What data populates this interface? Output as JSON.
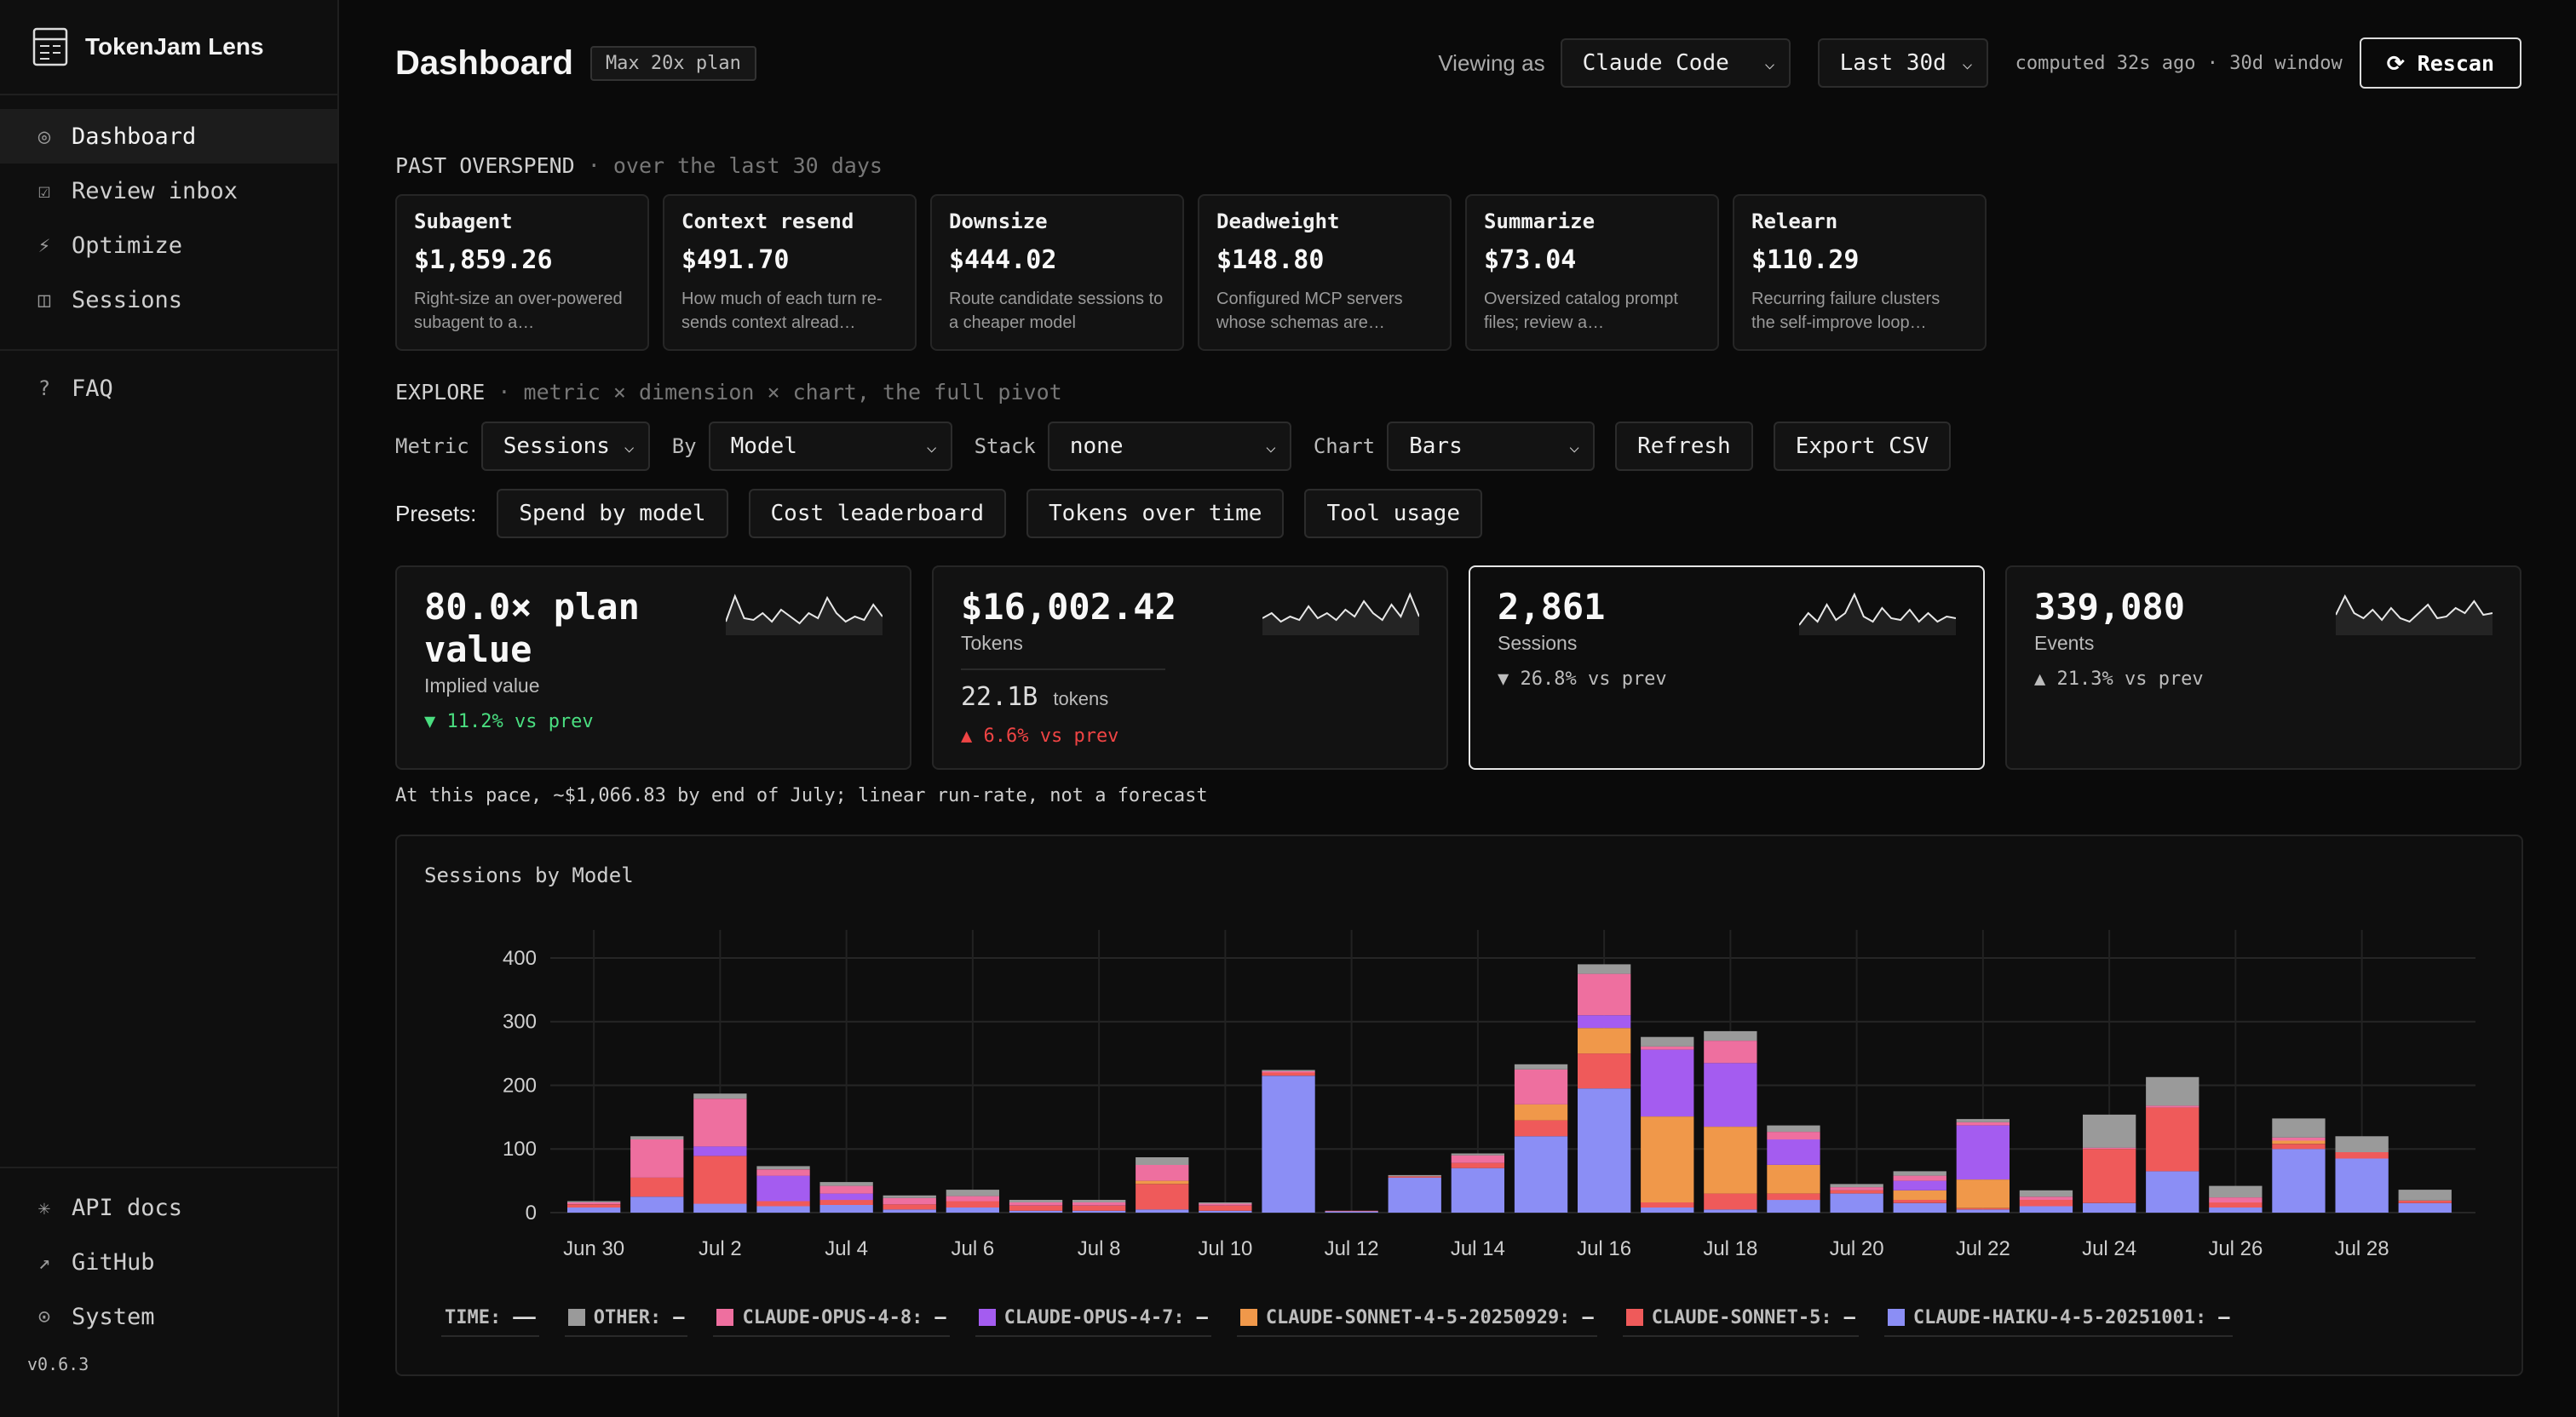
{
  "app": {
    "name": "TokenJam Lens",
    "version": "v0.6.3"
  },
  "sidebar": {
    "items": [
      {
        "icon": "◎",
        "label": "Dashboard",
        "active": true
      },
      {
        "icon": "☑",
        "label": "Review inbox"
      },
      {
        "icon": "⚡",
        "label": "Optimize"
      },
      {
        "icon": "◫",
        "label": "Sessions"
      }
    ],
    "faq": {
      "icon": "?",
      "label": "FAQ"
    },
    "bottom": [
      {
        "icon": "✳",
        "label": "API docs"
      },
      {
        "icon": "↗",
        "label": "GitHub"
      },
      {
        "icon": "⊙",
        "label": "System"
      }
    ]
  },
  "header": {
    "title": "Dashboard",
    "plan": "Max 20x plan",
    "viewing_label": "Viewing as",
    "viewing_value": "Claude Code",
    "range_value": "Last 30d",
    "computed": "computed 32s ago · 30d window",
    "rescan": "⟳ Rescan"
  },
  "overspend": {
    "label": "PAST OVERSPEND",
    "sub": " · over the last 30 days",
    "cards": [
      {
        "title": "Subagent",
        "value": "$1,859.26",
        "desc": "Right-size an over-powered subagent to a…"
      },
      {
        "title": "Context resend",
        "value": "$491.70",
        "desc": "How much of each turn re-sends context alread…"
      },
      {
        "title": "Downsize",
        "value": "$444.02",
        "desc": "Route candidate sessions to a cheaper model"
      },
      {
        "title": "Deadweight",
        "value": "$148.80",
        "desc": "Configured MCP servers whose schemas are…"
      },
      {
        "title": "Summarize",
        "value": "$73.04",
        "desc": "Oversized catalog prompt files; review a…"
      },
      {
        "title": "Relearn",
        "value": "$110.29",
        "desc": "Recurring failure clusters the self-improve loop…"
      }
    ]
  },
  "explore": {
    "label": "EXPLORE",
    "sub": " · metric × dimension × chart, the full pivot",
    "metric_label": "Metric",
    "metric_value": "Sessions",
    "by_label": "By",
    "by_value": "Model",
    "stack_label": "Stack",
    "stack_value": "none",
    "chart_label": "Chart",
    "chart_value": "Bars",
    "refresh": "Refresh",
    "export": "Export CSV"
  },
  "presets": {
    "label": "Presets:",
    "items": [
      "Spend by model",
      "Cost leaderboard",
      "Tokens over time",
      "Tool usage"
    ]
  },
  "kpis": [
    {
      "value": "80.0× plan value",
      "label": "Implied value",
      "delta": "▼ 11.2% vs prev",
      "delta_color": "#4ade80"
    },
    {
      "value": "$16,002.42",
      "label": "Tokens",
      "secondary": "22.1B",
      "secondary_unit": "tokens",
      "delta": "▲ 6.6% vs prev",
      "delta_color": "#ef4444"
    },
    {
      "value": "2,861",
      "label": "Sessions",
      "delta": "▼ 26.8% vs prev",
      "delta_color": "#bdbdbd",
      "selected": true
    },
    {
      "value": "339,080",
      "label": "Events",
      "delta": "▲ 21.3% vs prev",
      "delta_color": "#bdbdbd"
    }
  ],
  "runrate": "At this pace, ~$1,066.83 by end of July; linear run-rate, not a forecast",
  "chart_data": {
    "type": "bar",
    "title": "Sessions by Model",
    "stacked": true,
    "categories": [
      "Jun 30",
      "Jul 1",
      "Jul 2",
      "Jul 3",
      "Jul 4",
      "Jul 5",
      "Jul 6",
      "Jul 7",
      "Jul 8",
      "Jul 9",
      "Jul 10",
      "Jul 11",
      "Jul 12",
      "Jul 13",
      "Jul 14",
      "Jul 15",
      "Jul 16",
      "Jul 17",
      "Jul 18",
      "Jul 19",
      "Jul 20",
      "Jul 21",
      "Jul 22",
      "Jul 23",
      "Jul 24",
      "Jul 25",
      "Jul 26",
      "Jul 27",
      "Jul 28",
      "Jul 29"
    ],
    "tick_labels": [
      "Jun 30",
      "Jul 2",
      "Jul 4",
      "Jul 6",
      "Jul 8",
      "Jul 10",
      "Jul 12",
      "Jul 14",
      "Jul 16",
      "Jul 18",
      "Jul 20",
      "Jul 22",
      "Jul 24",
      "Jul 26",
      "Jul 28"
    ],
    "ylim": [
      0,
      420
    ],
    "yticks": [
      0,
      100,
      200,
      300,
      400
    ],
    "grid": true,
    "legend_position": "bottom",
    "series": [
      {
        "name": "CLAUDE-HAIKU-4-5-20251001",
        "color": "#8b8ef5",
        "values": [
          8,
          25,
          14,
          10,
          12,
          5,
          8,
          3,
          3,
          5,
          3,
          215,
          2,
          55,
          70,
          120,
          195,
          8,
          5,
          20,
          30,
          15,
          5,
          10,
          15,
          65,
          8,
          100,
          85,
          15
        ]
      },
      {
        "name": "CLAUDE-SONNET-5",
        "color": "#ef5a5a",
        "values": [
          5,
          30,
          75,
          8,
          8,
          8,
          10,
          8,
          8,
          40,
          8,
          5,
          1,
          2,
          8,
          25,
          55,
          8,
          25,
          10,
          5,
          5,
          2,
          10,
          85,
          100,
          8,
          8,
          10,
          4
        ]
      },
      {
        "name": "CLAUDE-SONNET-4-5-20250929",
        "color": "#f0984a",
        "values": [
          0,
          0,
          0,
          0,
          0,
          0,
          0,
          0,
          0,
          5,
          0,
          0,
          0,
          0,
          0,
          25,
          40,
          135,
          105,
          45,
          0,
          15,
          45,
          0,
          0,
          0,
          0,
          5,
          0,
          0
        ]
      },
      {
        "name": "CLAUDE-OPUS-4-7",
        "color": "#a45cf0",
        "values": [
          0,
          0,
          15,
          40,
          10,
          0,
          0,
          0,
          0,
          0,
          0,
          0,
          0,
          0,
          0,
          0,
          20,
          105,
          100,
          40,
          0,
          15,
          85,
          0,
          0,
          0,
          0,
          0,
          0,
          0
        ]
      },
      {
        "name": "CLAUDE-OPUS-4-8",
        "color": "#ee6f9f",
        "values": [
          3,
          60,
          75,
          10,
          12,
          10,
          8,
          5,
          5,
          25,
          3,
          2,
          0,
          0,
          12,
          55,
          65,
          5,
          35,
          12,
          5,
          8,
          5,
          5,
          2,
          3,
          8,
          5,
          0,
          0
        ]
      },
      {
        "name": "OTHER",
        "color": "#9a9a9a",
        "values": [
          2,
          5,
          8,
          5,
          6,
          4,
          10,
          4,
          4,
          12,
          2,
          2,
          0,
          2,
          3,
          8,
          15,
          15,
          15,
          10,
          5,
          7,
          5,
          10,
          52,
          45,
          18,
          30,
          25,
          17
        ]
      }
    ],
    "legend": [
      {
        "name": "TIME:",
        "swatch": null
      },
      {
        "name": "OTHER:",
        "swatch": "#9a9a9a"
      },
      {
        "name": "CLAUDE-OPUS-4-8:",
        "swatch": "#ee6f9f"
      },
      {
        "name": "CLAUDE-OPUS-4-7:",
        "swatch": "#a45cf0"
      },
      {
        "name": "CLAUDE-SONNET-4-5-20250929:",
        "swatch": "#f0984a"
      },
      {
        "name": "CLAUDE-SONNET-5:",
        "swatch": "#ef5a5a"
      },
      {
        "name": "CLAUDE-HAIKU-4-5-20251001:",
        "swatch": "#8b8ef5"
      }
    ]
  }
}
